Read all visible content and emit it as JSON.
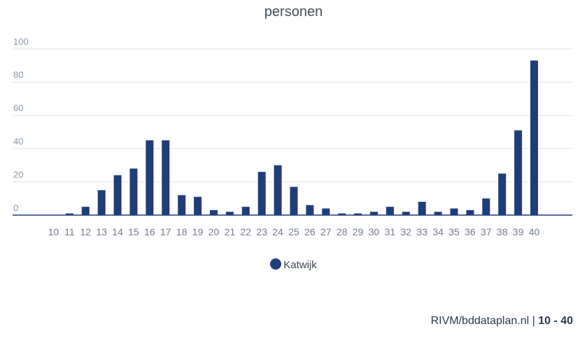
{
  "colors": {
    "bar": "#1f3d7a"
  },
  "chart_data": {
    "type": "bar",
    "title": "personen",
    "categories": [
      "10",
      "11",
      "12",
      "13",
      "14",
      "15",
      "16",
      "17",
      "18",
      "19",
      "20",
      "21",
      "22",
      "23",
      "24",
      "25",
      "26",
      "27",
      "28",
      "29",
      "30",
      "31",
      "32",
      "33",
      "34",
      "35",
      "36",
      "37",
      "38",
      "39",
      "40"
    ],
    "series": [
      {
        "name": "Katwijk",
        "values": [
          0,
          1,
          5,
          15,
          24,
          28,
          45,
          45,
          12,
          11,
          3,
          2,
          5,
          26,
          30,
          17,
          6,
          4,
          1,
          1,
          2,
          5,
          2,
          8,
          2,
          4,
          3,
          10,
          25,
          51,
          93
        ]
      }
    ],
    "ylim": [
      0,
      100
    ],
    "yticks": [
      "0",
      "20",
      "40",
      "60",
      "80",
      "100"
    ],
    "xlabel": "",
    "ylabel": "",
    "grid": true,
    "legend_position": "bottom-center"
  },
  "footer": {
    "source": "RIVM/bddataplan.nl",
    "separator": " | ",
    "range": "10 - 40"
  }
}
